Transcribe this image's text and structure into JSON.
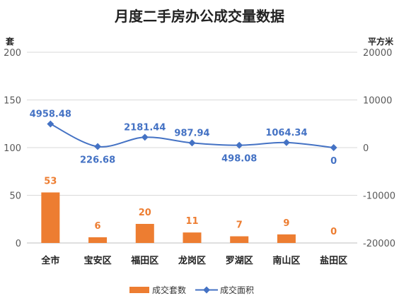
{
  "chart_data": {
    "type": "bar",
    "title": "月度二手房办公成交量数据",
    "categories": [
      "全市",
      "宝安区",
      "福田区",
      "龙岗区",
      "罗湖区",
      "南山区",
      "盐田区"
    ],
    "ylabel": "套",
    "y2label": "平方米",
    "ylim": [
      0,
      200
    ],
    "yticks": [
      "0",
      "50",
      "100",
      "150",
      "200"
    ],
    "y2lim": [
      -20000,
      20000
    ],
    "y2ticks": [
      "-20000",
      "-10000",
      "0",
      "10000",
      "20000"
    ],
    "grid": true,
    "legend_position": "bottom",
    "series": [
      {
        "name": "成交套数",
        "type": "bar",
        "axis": "left",
        "color": "#ED7D31",
        "values": [
          53,
          6,
          20,
          11,
          7,
          9,
          0
        ],
        "labels": [
          "53",
          "6",
          "20",
          "11",
          "7",
          "9",
          "0"
        ]
      },
      {
        "name": "成交面积",
        "type": "line",
        "axis": "right",
        "color": "#4472C4",
        "marker": "diamond",
        "values": [
          4958.48,
          226.68,
          2181.44,
          987.94,
          498.08,
          1064.34,
          0
        ],
        "labels": [
          "4958.48",
          "226.68",
          "2181.44",
          "987.94",
          "498.08",
          "1064.34",
          "0"
        ]
      }
    ]
  }
}
